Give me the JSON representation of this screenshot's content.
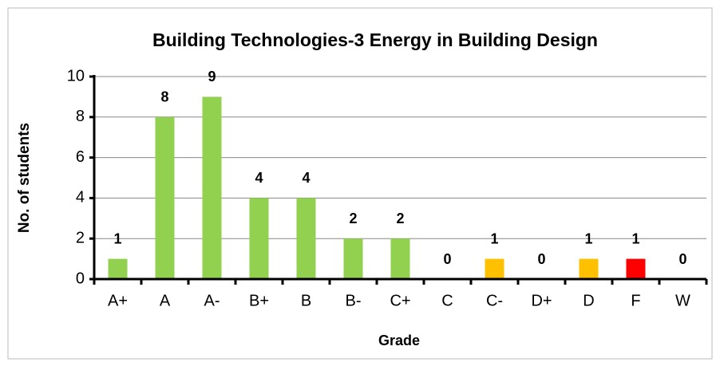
{
  "chart_data": {
    "type": "bar",
    "title": "Building Technologies-3 Energy in Building Design",
    "x_label": "Grade",
    "y_label": "No. of students",
    "categories": [
      "A+",
      "A",
      "A-",
      "B+",
      "B",
      "B-",
      "C+",
      "C",
      "C-",
      "D+",
      "D",
      "F",
      "W"
    ],
    "values": [
      1,
      8,
      9,
      4,
      4,
      2,
      2,
      0,
      1,
      0,
      1,
      1,
      0
    ],
    "colors": [
      "#92d050",
      "#92d050",
      "#92d050",
      "#92d050",
      "#92d050",
      "#92d050",
      "#92d050",
      "#92d050",
      "#ffc000",
      "#92d050",
      "#ffc000",
      "#ff0000",
      "#92d050"
    ],
    "ylim": [
      0,
      10
    ],
    "yticks": [
      0,
      2,
      4,
      6,
      8,
      10
    ],
    "grid": true,
    "data_labels": true
  }
}
